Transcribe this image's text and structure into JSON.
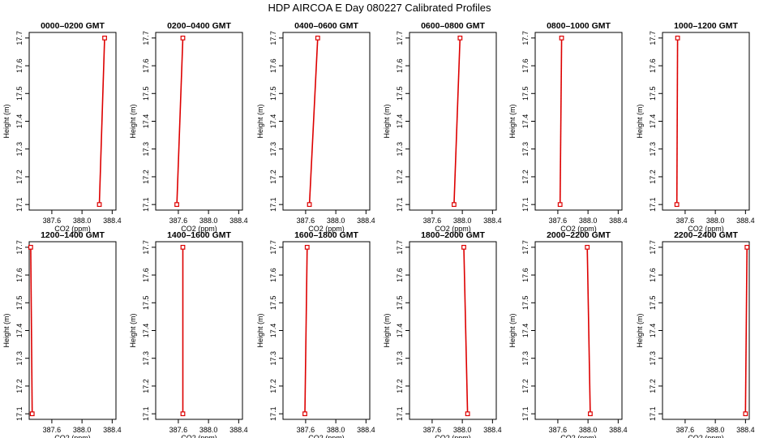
{
  "title": "HDP  AIRCOA E  Day 080227  Calibrated Profiles",
  "colors": {
    "series": "#dd0000",
    "axes": "#000000",
    "background": "#ffffff"
  },
  "chart_data": {
    "type": "line",
    "layout": "2 rows x 6 panels",
    "xlabel": "CO2 (ppm)",
    "ylabel": "Height (m)",
    "xlim": [
      387.3,
      388.45
    ],
    "ylim": [
      17.08,
      17.72
    ],
    "xticks": [
      "387.6",
      "388.0",
      "388.4"
    ],
    "xtick_values": [
      387.6,
      388.0,
      388.4
    ],
    "yticks": [
      "17.1",
      "17.2",
      "17.3",
      "17.4",
      "17.5",
      "17.6",
      "17.7"
    ],
    "ytick_values": [
      17.1,
      17.2,
      17.3,
      17.4,
      17.5,
      17.6,
      17.7
    ],
    "grid": false,
    "panels": [
      {
        "title": "0000–0200 GMT",
        "points": [
          {
            "x": 388.23,
            "y": 17.1
          },
          {
            "x": 388.3,
            "y": 17.7
          }
        ]
      },
      {
        "title": "0200–0400 GMT",
        "points": [
          {
            "x": 387.58,
            "y": 17.1
          },
          {
            "x": 387.66,
            "y": 17.7
          }
        ]
      },
      {
        "title": "0400–0600 GMT",
        "points": [
          {
            "x": 387.65,
            "y": 17.1
          },
          {
            "x": 387.76,
            "y": 17.7
          }
        ]
      },
      {
        "title": "0600–0800 GMT",
        "points": [
          {
            "x": 387.89,
            "y": 17.1
          },
          {
            "x": 387.97,
            "y": 17.7
          }
        ]
      },
      {
        "title": "0800–1000 GMT",
        "points": [
          {
            "x": 387.63,
            "y": 17.1
          },
          {
            "x": 387.65,
            "y": 17.7
          }
        ]
      },
      {
        "title": "1000–1200 GMT",
        "points": [
          {
            "x": 387.49,
            "y": 17.1
          },
          {
            "x": 387.5,
            "y": 17.7
          }
        ]
      },
      {
        "title": "1200–1400 GMT",
        "points": [
          {
            "x": 387.34,
            "y": 17.1
          },
          {
            "x": 387.32,
            "y": 17.7
          }
        ]
      },
      {
        "title": "1400–1600 GMT",
        "points": [
          {
            "x": 387.66,
            "y": 17.1
          },
          {
            "x": 387.66,
            "y": 17.7
          }
        ]
      },
      {
        "title": "1600–1800 GMT",
        "points": [
          {
            "x": 387.59,
            "y": 17.1
          },
          {
            "x": 387.62,
            "y": 17.7
          }
        ]
      },
      {
        "title": "1800–2000 GMT",
        "points": [
          {
            "x": 388.07,
            "y": 17.1
          },
          {
            "x": 388.02,
            "y": 17.7
          }
        ]
      },
      {
        "title": "2000–2200 GMT",
        "points": [
          {
            "x": 388.03,
            "y": 17.1
          },
          {
            "x": 387.99,
            "y": 17.7
          }
        ]
      },
      {
        "title": "2200–2400 GMT",
        "points": [
          {
            "x": 388.4,
            "y": 17.1
          },
          {
            "x": 388.42,
            "y": 17.7
          }
        ]
      }
    ]
  }
}
